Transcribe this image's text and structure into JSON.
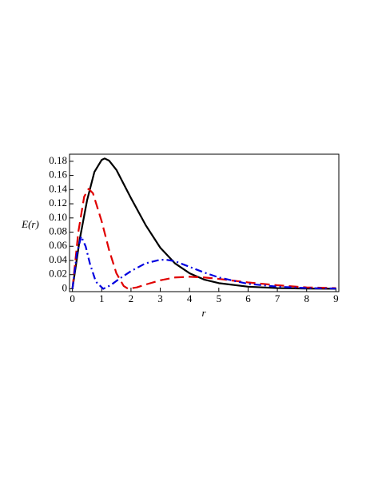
{
  "chart_data": {
    "type": "line",
    "xlabel": "r",
    "ylabel": "E(r)",
    "xlim": [
      -0.1,
      9.1
    ],
    "ylim": [
      -0.004,
      0.19
    ],
    "xticks": [
      0,
      1,
      2,
      3,
      4,
      5,
      6,
      7,
      8,
      9
    ],
    "yticks": [
      0,
      0.02,
      0.04,
      0.06,
      0.08,
      {
        "value": 0.1,
        "label": "0.10"
      },
      0.12,
      0.14,
      0.16,
      0.18
    ],
    "series": [
      {
        "color": "#000000",
        "dash": "solid",
        "x": [
          0,
          0.25,
          0.5,
          0.75,
          1.0,
          1.1,
          1.25,
          1.5,
          2,
          2.5,
          3,
          3.5,
          4,
          4.5,
          5,
          6,
          7,
          8,
          9
        ],
        "values": [
          0,
          0.07,
          0.125,
          0.165,
          0.182,
          0.184,
          0.181,
          0.168,
          0.128,
          0.09,
          0.058,
          0.036,
          0.022,
          0.013,
          0.008,
          0.003,
          0.001,
          0.0003,
          0.0001
        ]
      },
      {
        "color": "#e00000",
        "dash": "dash",
        "x": [
          0,
          0.2,
          0.4,
          0.55,
          0.7,
          1.0,
          1.25,
          1.5,
          1.75,
          1.9,
          2.2,
          2.5,
          3,
          3.5,
          4,
          4.5,
          5,
          6,
          7,
          8,
          9
        ],
        "values": [
          0,
          0.08,
          0.13,
          0.141,
          0.135,
          0.095,
          0.055,
          0.022,
          0.004,
          0,
          0.002,
          0.006,
          0.012,
          0.016,
          0.017,
          0.016,
          0.014,
          0.009,
          0.005,
          0.002,
          0.001
        ]
      },
      {
        "color": "#0000e0",
        "dash": "dashdot",
        "x": [
          0,
          0.15,
          0.3,
          0.45,
          0.6,
          0.8,
          1.05,
          1.3,
          1.6,
          2,
          2.5,
          3,
          3.2,
          3.5,
          4,
          4.5,
          5,
          6,
          7,
          8,
          9
        ],
        "values": [
          0,
          0.05,
          0.074,
          0.06,
          0.035,
          0.01,
          0,
          0.005,
          0.014,
          0.025,
          0.036,
          0.041,
          0.041,
          0.039,
          0.031,
          0.023,
          0.016,
          0.007,
          0.003,
          0.001,
          0.0004
        ]
      }
    ]
  }
}
